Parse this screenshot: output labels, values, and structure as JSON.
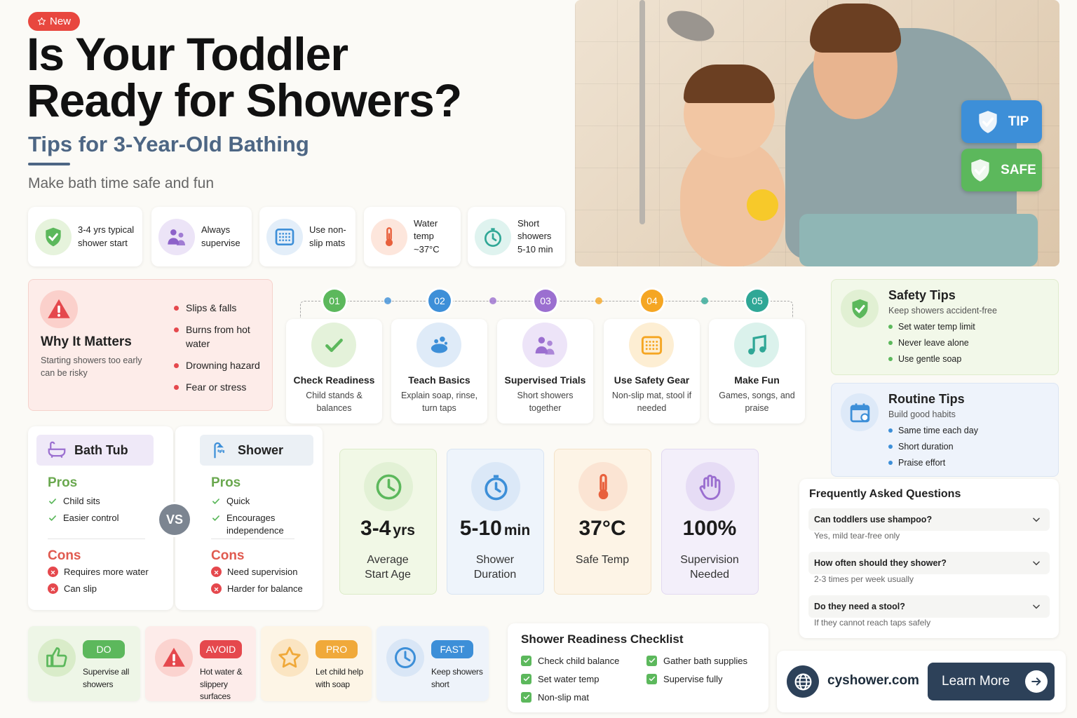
{
  "header": {
    "badge": "New",
    "title_line1": "Is Your Toddler",
    "title_line2": "Ready for Showers?",
    "subtitle": "Tips for 3-Year-Old Bathing",
    "tagline": "Make bath time safe and fun"
  },
  "highlights": [
    "3-4 yrs typical shower start",
    "Always supervise",
    "Use non-slip mats",
    "Water temp ~37°C",
    "Short showers 5-10 min"
  ],
  "photo": {
    "badges": [
      "TIP",
      "SAFE"
    ]
  },
  "why": {
    "title": "Why It Matters",
    "text": "Starting showers too early can be risky",
    "risks": [
      "Slips & falls",
      "Burns from hot water",
      "Drowning hazard",
      "Fear or stress"
    ]
  },
  "steps": [
    {
      "num": "01",
      "title": "Check Readiness",
      "text": "Child stands & balances"
    },
    {
      "num": "02",
      "title": "Teach Basics",
      "text": "Explain soap, rinse, turn taps"
    },
    {
      "num": "03",
      "title": "Supervised Trials",
      "text": "Short showers together"
    },
    {
      "num": "04",
      "title": "Use Safety Gear",
      "text": "Non-slip mat, stool if needed"
    },
    {
      "num": "05",
      "title": "Make Fun",
      "text": "Games, songs, and praise"
    }
  ],
  "safety_tips": {
    "title": "Safety Tips",
    "subtitle": "Keep showers accident-free",
    "items": [
      "Set water temp limit",
      "Never leave alone",
      "Use gentle soap"
    ]
  },
  "routine_tips": {
    "title": "Routine Tips",
    "subtitle": "Build good habits",
    "items": [
      "Same time each day",
      "Short duration",
      "Praise effort"
    ]
  },
  "comparison": {
    "vs": "VS",
    "options": [
      {
        "title": "Bath Tub",
        "pros_label": "Pros",
        "pros": [
          "Child sits",
          "Easier control"
        ],
        "cons_label": "Cons",
        "cons": [
          "Requires more water",
          "Can slip"
        ]
      },
      {
        "title": "Shower",
        "pros_label": "Pros",
        "pros": [
          "Quick",
          "Encourages independence"
        ],
        "cons_label": "Cons",
        "cons": [
          "Need supervision",
          "Harder for balance"
        ]
      }
    ]
  },
  "metrics": [
    {
      "value": "3-4",
      "unit": "yrs",
      "label": "Average Start Age"
    },
    {
      "value": "5-10",
      "unit": "min",
      "label": "Shower Duration"
    },
    {
      "value": "37°C",
      "label": "Safe Temp"
    },
    {
      "value": "100%",
      "label": "Supervision Needed"
    }
  ],
  "faq": {
    "title": "Frequently Asked Questions",
    "items": [
      {
        "q": "Can toddlers use shampoo?",
        "a": "Yes, mild tear-free only"
      },
      {
        "q": "How often should they shower?",
        "a": "2-3 times per week usually"
      },
      {
        "q": "Do they need a stool?",
        "a": "If they cannot reach taps safely"
      }
    ]
  },
  "quick_tips": [
    {
      "tag": "DO",
      "text": "Supervise all showers"
    },
    {
      "tag": "AVOID",
      "text": "Hot water & slippery surfaces"
    },
    {
      "tag": "PRO",
      "text": "Let child help with soap"
    },
    {
      "tag": "FAST",
      "text": "Keep showers short"
    }
  ],
  "checklist": {
    "title": "Shower Readiness Checklist",
    "items": [
      "Check child balance",
      "Gather bath supplies",
      "Set water temp",
      "Supervise fully",
      "Non-slip mat"
    ]
  },
  "footer": {
    "domain": "cyshower.com",
    "button": "Learn More"
  }
}
